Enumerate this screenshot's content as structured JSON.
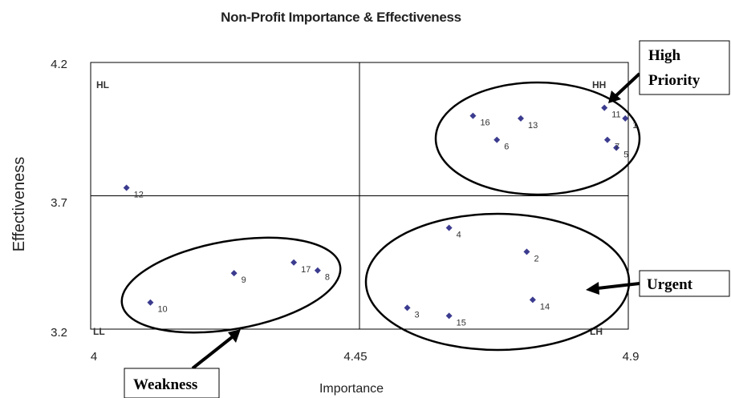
{
  "chart_data": {
    "type": "scatter",
    "title": "Non-Profit Importance & Effectiveness",
    "xlabel": "Importance",
    "ylabel": "Effectiveness",
    "xlim": [
      4,
      4.9
    ],
    "ylim": [
      3.2,
      4.2
    ],
    "x_ticks": [
      "4",
      "4.45",
      "4.9"
    ],
    "y_ticks": [
      "4.2",
      "3.7",
      "3.2"
    ],
    "reference_lines": {
      "x": 4.45,
      "y": 3.7
    },
    "grid": false,
    "marker_color": "#3b3b8f",
    "points": [
      {
        "label": "1",
        "x": 4.895,
        "y": 3.99
      },
      {
        "label": "2",
        "x": 4.73,
        "y": 3.49
      },
      {
        "label": "3",
        "x": 4.53,
        "y": 3.28
      },
      {
        "label": "4",
        "x": 4.6,
        "y": 3.58
      },
      {
        "label": "5",
        "x": 4.88,
        "y": 3.88
      },
      {
        "label": "6",
        "x": 4.68,
        "y": 3.91
      },
      {
        "label": "7",
        "x": 4.865,
        "y": 3.91
      },
      {
        "label": "8",
        "x": 4.38,
        "y": 3.42
      },
      {
        "label": "9",
        "x": 4.24,
        "y": 3.41
      },
      {
        "label": "10",
        "x": 4.1,
        "y": 3.3
      },
      {
        "label": "11",
        "x": 4.86,
        "y": 4.03
      },
      {
        "label": "12",
        "x": 4.06,
        "y": 3.73
      },
      {
        "label": "13",
        "x": 4.72,
        "y": 3.99
      },
      {
        "label": "14",
        "x": 4.74,
        "y": 3.31
      },
      {
        "label": "15",
        "x": 4.6,
        "y": 3.25
      },
      {
        "label": "16",
        "x": 4.64,
        "y": 4.0
      },
      {
        "label": "17",
        "x": 4.34,
        "y": 3.45
      }
    ],
    "quadrants": [
      "HL",
      "HH",
      "LL",
      "LH"
    ],
    "callouts": {
      "high_priority": [
        "High",
        "Priority"
      ],
      "urgent": "Urgent",
      "weakness": "Weakness"
    }
  }
}
